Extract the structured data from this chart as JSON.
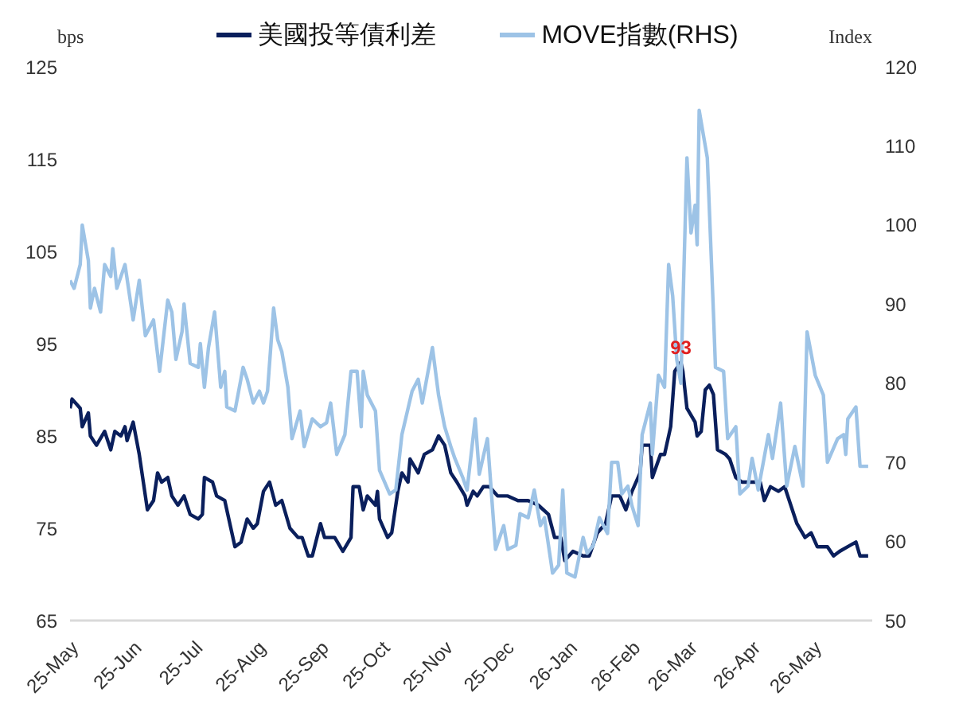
{
  "chart_data": {
    "type": "line",
    "ylabel": "bps",
    "y2label": "Index",
    "legend": "top",
    "grid": false,
    "marker": "none",
    "line_style": "solid",
    "xlim": [
      "2025-05-01",
      "2026-05-30"
    ],
    "xticks": [
      {
        "value": "2025-05-01",
        "label": "25-May"
      },
      {
        "value": "2025-06-01",
        "label": "25-Jun"
      },
      {
        "value": "2025-07-01",
        "label": "25-Jul"
      },
      {
        "value": "2025-08-01",
        "label": "25-Aug"
      },
      {
        "value": "2025-09-01",
        "label": "25-Sep"
      },
      {
        "value": "2025-10-01",
        "label": "25-Oct"
      },
      {
        "value": "2025-11-01",
        "label": "25-Nov"
      },
      {
        "value": "2025-12-01",
        "label": "25-Dec"
      },
      {
        "value": "2026-01-01",
        "label": "26-Jan"
      },
      {
        "value": "2026-02-01",
        "label": "26-Feb"
      },
      {
        "value": "2026-03-01",
        "label": "26-Mar"
      },
      {
        "value": "2026-04-01",
        "label": "26-Apr"
      },
      {
        "value": "2026-05-01",
        "label": "26-May"
      }
    ],
    "ylim": [
      65,
      125
    ],
    "yticks": [
      65,
      75,
      85,
      95,
      105,
      115,
      125
    ],
    "y2lim": [
      50,
      120
    ],
    "y2ticks": [
      50,
      60,
      70,
      80,
      90,
      100,
      110,
      120
    ],
    "annotations": [
      {
        "text": "93",
        "x": "2026-02-25",
        "y": 93
      }
    ],
    "series": [
      {
        "name": "美國投等債利差",
        "color": "#0a1f5c",
        "x": [
          "2025-05-01",
          "2025-05-02",
          "2025-05-06",
          "2025-05-07",
          "2025-05-10",
          "2025-05-11",
          "2025-05-14",
          "2025-05-18",
          "2025-05-21",
          "2025-05-23",
          "2025-05-26",
          "2025-05-28",
          "2025-05-29",
          "2025-06-01",
          "2025-06-04",
          "2025-06-08",
          "2025-06-11",
          "2025-06-13",
          "2025-06-15",
          "2025-06-18",
          "2025-06-20",
          "2025-06-23",
          "2025-06-26",
          "2025-06-29",
          "2025-07-03",
          "2025-07-05",
          "2025-07-06",
          "2025-07-10",
          "2025-07-12",
          "2025-07-16",
          "2025-07-21",
          "2025-07-24",
          "2025-07-27",
          "2025-07-30",
          "2025-08-01",
          "2025-08-04",
          "2025-08-07",
          "2025-08-10",
          "2025-08-13",
          "2025-08-17",
          "2025-08-21",
          "2025-08-23",
          "2025-08-26",
          "2025-08-28",
          "2025-09-01",
          "2025-09-03",
          "2025-09-08",
          "2025-09-12",
          "2025-09-16",
          "2025-09-17",
          "2025-09-20",
          "2025-09-22",
          "2025-09-24",
          "2025-09-28",
          "2025-09-29",
          "2025-09-30",
          "2025-10-04",
          "2025-10-06",
          "2025-10-09",
          "2025-10-11",
          "2025-10-14",
          "2025-10-15",
          "2025-10-19",
          "2025-10-22",
          "2025-10-26",
          "2025-10-29",
          "2025-11-01",
          "2025-11-04",
          "2025-11-07",
          "2025-11-11",
          "2025-11-12",
          "2025-11-15",
          "2025-11-17",
          "2025-11-20",
          "2025-11-23",
          "2025-11-27",
          "2025-12-02",
          "2025-12-07",
          "2025-12-12",
          "2025-12-17",
          "2025-12-22",
          "2025-12-25",
          "2025-12-28",
          "2025-12-30",
          "2026-01-03",
          "2026-01-08",
          "2026-01-11",
          "2026-01-15",
          "2026-01-19",
          "2026-01-22",
          "2026-01-26",
          "2026-01-29",
          "2026-02-01",
          "2026-02-05",
          "2026-02-06",
          "2026-02-10",
          "2026-02-11",
          "2026-02-15",
          "2026-02-17",
          "2026-02-20",
          "2026-02-22",
          "2026-02-25",
          "2026-02-26",
          "2026-02-28",
          "2026-03-04",
          "2026-03-05",
          "2026-03-07",
          "2026-03-09",
          "2026-03-11",
          "2026-03-13",
          "2026-03-15",
          "2026-03-19",
          "2026-03-21",
          "2026-03-24",
          "2026-03-27",
          "2026-04-01",
          "2026-04-05",
          "2026-04-07",
          "2026-04-10",
          "2026-04-14",
          "2026-04-17",
          "2026-04-20",
          "2026-04-23",
          "2026-04-27",
          "2026-04-30",
          "2026-05-03",
          "2026-05-08",
          "2026-05-11",
          "2026-05-14",
          "2026-05-18",
          "2026-05-22",
          "2026-05-24",
          "2026-05-28"
        ],
        "values": [
          88,
          89,
          88,
          86,
          87.5,
          85,
          84,
          85.5,
          83.5,
          85.5,
          85,
          86,
          84.5,
          86.5,
          83,
          77,
          78,
          81,
          80,
          80.5,
          78.5,
          77.5,
          78.5,
          76.5,
          76,
          76.5,
          80.5,
          80,
          78.5,
          78,
          73,
          73.5,
          76,
          75,
          75.5,
          79,
          80,
          77.5,
          78,
          75,
          74,
          74,
          72,
          72,
          75.5,
          74,
          74,
          72.5,
          74,
          79.5,
          79.5,
          77,
          78.5,
          77.5,
          79,
          76,
          74,
          74.5,
          79,
          81,
          80,
          82.5,
          81,
          83,
          83.5,
          85,
          84,
          81,
          80,
          78.5,
          77.5,
          79,
          78.5,
          79.5,
          79.5,
          78.5,
          78.5,
          78,
          78,
          77.5,
          76.5,
          74,
          74,
          71.5,
          72.5,
          72,
          72,
          74.5,
          75.5,
          78.5,
          78.5,
          77,
          79,
          81,
          84,
          84,
          80.5,
          83,
          83,
          86,
          92,
          93,
          92,
          88,
          86.5,
          85,
          85.5,
          90,
          90.5,
          89.5,
          83.5,
          83,
          82.5,
          80.5,
          80,
          80,
          80,
          78,
          79.5,
          79,
          79.5,
          77.5,
          75.5,
          74,
          74.5,
          73,
          73,
          72,
          72.5,
          73,
          73.5,
          72,
          72
        ]
      },
      {
        "name": "MOVE指數(RHS)",
        "color": "#9dc3e6",
        "axis": "y2",
        "x": [
          "2025-05-01",
          "2025-05-03",
          "2025-05-06",
          "2025-05-07",
          "2025-05-10",
          "2025-05-11",
          "2025-05-13",
          "2025-05-16",
          "2025-05-18",
          "2025-05-21",
          "2025-05-22",
          "2025-05-24",
          "2025-05-28",
          "2025-06-01",
          "2025-06-04",
          "2025-06-07",
          "2025-06-11",
          "2025-06-14",
          "2025-06-18",
          "2025-06-20",
          "2025-06-22",
          "2025-06-25",
          "2025-06-26",
          "2025-06-29",
          "2025-07-03",
          "2025-07-04",
          "2025-07-06",
          "2025-07-08",
          "2025-07-11",
          "2025-07-14",
          "2025-07-16",
          "2025-07-17",
          "2025-07-21",
          "2025-07-25",
          "2025-07-27",
          "2025-07-30",
          "2025-08-02",
          "2025-08-04",
          "2025-08-06",
          "2025-08-09",
          "2025-08-11",
          "2025-08-13",
          "2025-08-16",
          "2025-08-18",
          "2025-08-22",
          "2025-08-24",
          "2025-08-28",
          "2025-09-01",
          "2025-09-04",
          "2025-09-06",
          "2025-09-09",
          "2025-09-13",
          "2025-09-16",
          "2025-09-19",
          "2025-09-21",
          "2025-09-22",
          "2025-09-24",
          "2025-09-28",
          "2025-09-30",
          "2025-10-05",
          "2025-10-08",
          "2025-10-11",
          "2025-10-16",
          "2025-10-19",
          "2025-10-21",
          "2025-10-26",
          "2025-10-29",
          "2025-11-01",
          "2025-11-04",
          "2025-11-06",
          "2025-11-10",
          "2025-11-12",
          "2025-11-16",
          "2025-11-18",
          "2025-11-22",
          "2025-11-26",
          "2025-11-30",
          "2025-12-02",
          "2025-12-06",
          "2025-12-08",
          "2025-12-12",
          "2025-12-15",
          "2025-12-18",
          "2025-12-20",
          "2025-12-24",
          "2025-12-27",
          "2025-12-29",
          "2025-12-31",
          "2026-01-04",
          "2026-01-08",
          "2026-01-10",
          "2026-01-13",
          "2026-01-16",
          "2026-01-20",
          "2026-01-22",
          "2026-01-25",
          "2026-01-27",
          "2026-01-30",
          "2026-02-01",
          "2026-02-04",
          "2026-02-06",
          "2026-02-10",
          "2026-02-11",
          "2026-02-14",
          "2026-02-17",
          "2026-02-19",
          "2026-02-21",
          "2026-02-23",
          "2026-02-25",
          "2026-02-28",
          "2026-03-02",
          "2026-03-04",
          "2026-03-05",
          "2026-03-06",
          "2026-03-08",
          "2026-03-10",
          "2026-03-13",
          "2026-03-14",
          "2026-03-18",
          "2026-03-20",
          "2026-03-24",
          "2026-03-26",
          "2026-03-30",
          "2026-04-01",
          "2026-04-04",
          "2026-04-09",
          "2026-04-11",
          "2026-04-15",
          "2026-04-18",
          "2026-04-22",
          "2026-04-26",
          "2026-04-28",
          "2026-05-02",
          "2026-05-06",
          "2026-05-08",
          "2026-05-13",
          "2026-05-16",
          "2026-05-17",
          "2026-05-18",
          "2026-05-22",
          "2026-05-24",
          "2026-05-28"
        ],
        "values": [
          93,
          92,
          95,
          100,
          95.5,
          89.5,
          92,
          89,
          95,
          93.5,
          97,
          92,
          95,
          88,
          93,
          86,
          88,
          81.5,
          90.5,
          89,
          83,
          86.5,
          90,
          82.5,
          82,
          85,
          79.5,
          84.5,
          89,
          79.5,
          81.5,
          77,
          76.5,
          82,
          80.5,
          77.5,
          79,
          77.5,
          79,
          89.5,
          85.5,
          84,
          79.5,
          73,
          76.5,
          72,
          75.5,
          74.5,
          75,
          77.5,
          71,
          73.5,
          81.5,
          81.5,
          74.5,
          81.5,
          78.5,
          76.5,
          69,
          66,
          66.5,
          73.5,
          79,
          80.5,
          77.5,
          84.5,
          78.5,
          74.5,
          72,
          70.5,
          68,
          66.5,
          75.5,
          68.5,
          73,
          59,
          62,
          59,
          59.5,
          63.5,
          63,
          66.5,
          62,
          63,
          56,
          57,
          66.5,
          56,
          55.5,
          60.5,
          58.5,
          59.5,
          63,
          61,
          70,
          70,
          66,
          67,
          64.5,
          62,
          73.5,
          77.5,
          71,
          81,
          79.5,
          95,
          91,
          83,
          80,
          108.5,
          99,
          102.5,
          97.5,
          114.5,
          111.5,
          108.5,
          89,
          82,
          81.5,
          73,
          74.5,
          66,
          67,
          70.5,
          66.5,
          73.5,
          70.5,
          77.5,
          67,
          72,
          67,
          86.5,
          81,
          78.5,
          70,
          73,
          73.5,
          71,
          75.5,
          77,
          69.5,
          69.5
        ]
      }
    ]
  }
}
